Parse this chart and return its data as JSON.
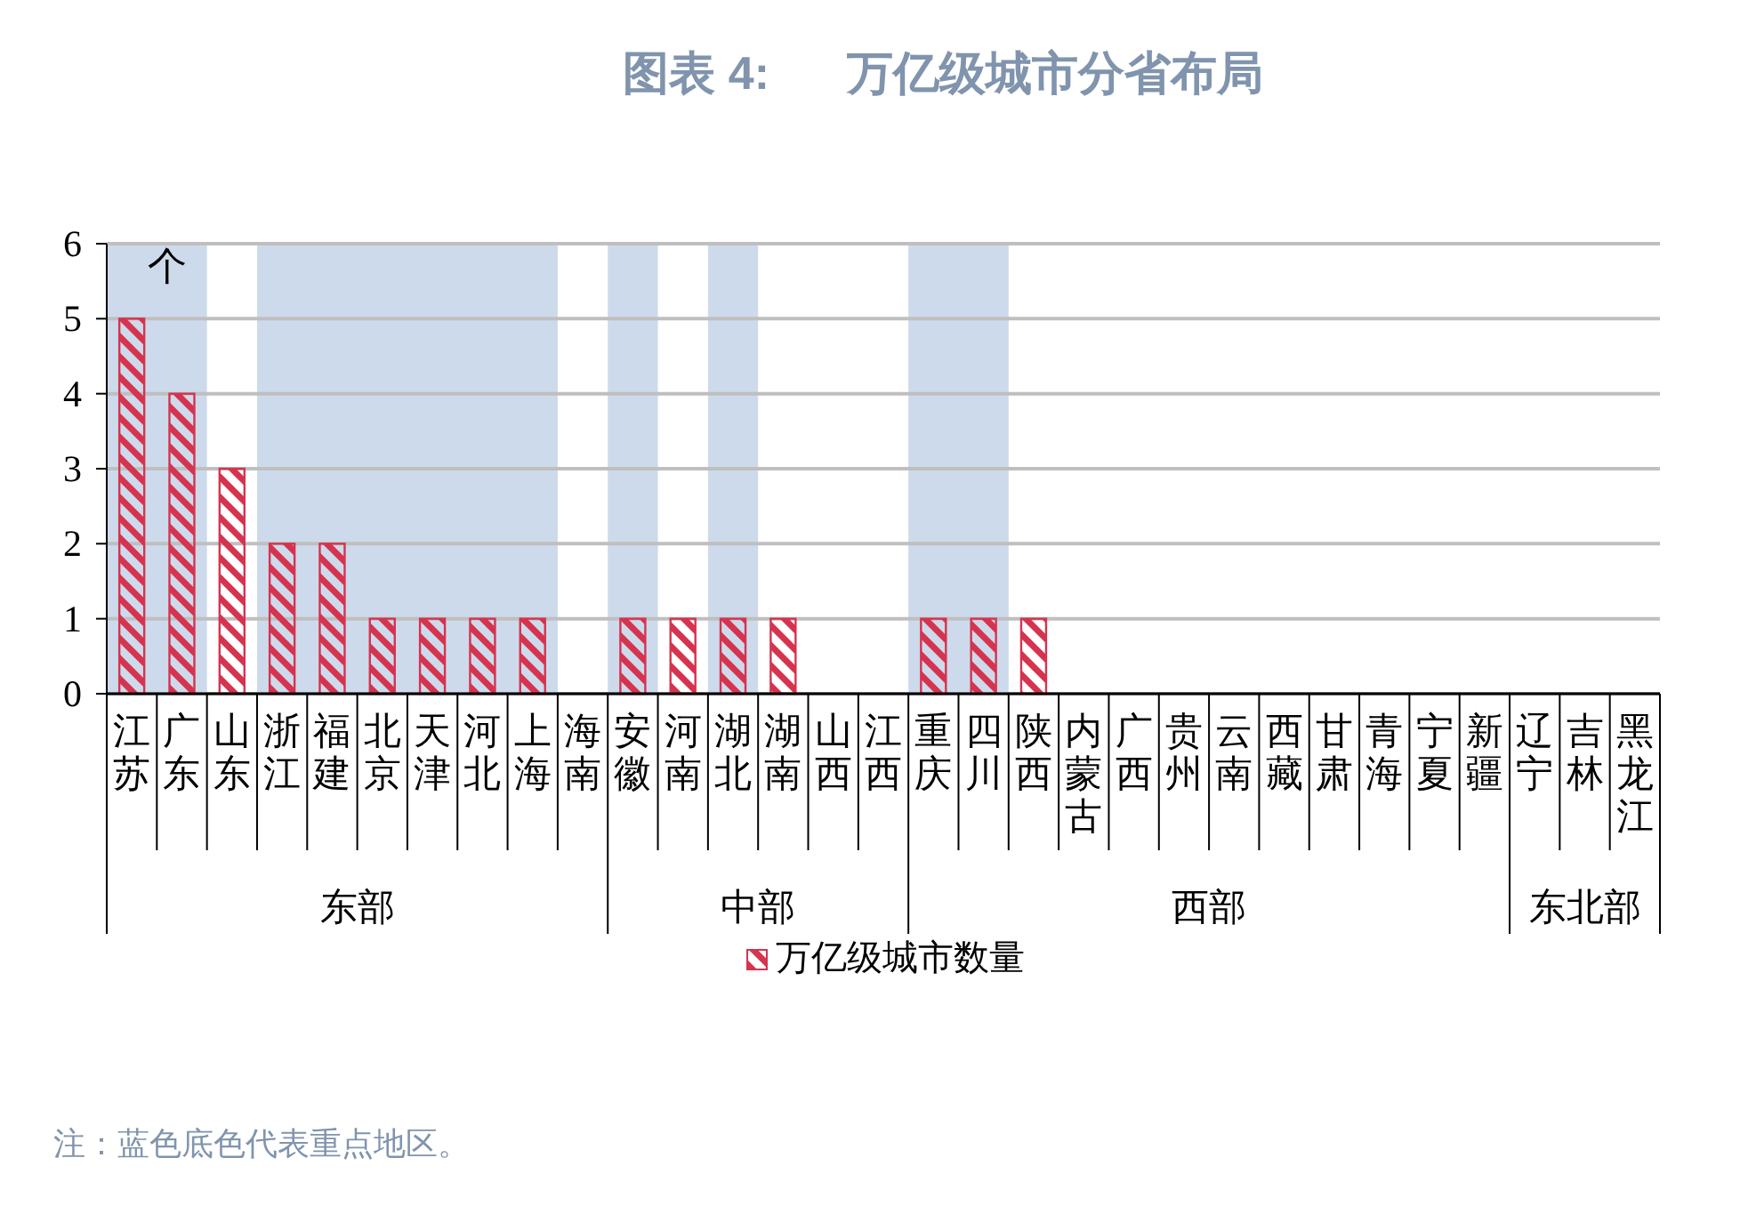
{
  "chart_data": {
    "type": "bar",
    "title": "图表 4:      万亿级城市分省布局",
    "ylabel": "个",
    "categories": [
      "江苏",
      "广东",
      "山东",
      "浙江",
      "福建",
      "北京",
      "天津",
      "河北",
      "上海",
      "海南",
      "安徽",
      "河南",
      "湖北",
      "湖南",
      "山西",
      "江西",
      "重庆",
      "四川",
      "陕西",
      "内蒙古",
      "广西",
      "贵州",
      "云南",
      "西藏",
      "甘肃",
      "青海",
      "宁夏",
      "新疆",
      "辽宁",
      "吉林",
      "黑龙江"
    ],
    "series": [
      {
        "name": "万亿级城市数量",
        "color": "#d6334f",
        "values": [
          5,
          4,
          3,
          2,
          2,
          1,
          1,
          1,
          1,
          0,
          1,
          1,
          1,
          1,
          0,
          0,
          1,
          1,
          1,
          0,
          0,
          0,
          0,
          0,
          0,
          0,
          0,
          0,
          0,
          0,
          0
        ]
      }
    ],
    "ylim": [
      0,
      6
    ],
    "yticks": [
      0,
      1,
      2,
      3,
      4,
      5,
      6
    ],
    "grid": "y",
    "legend": "bottom",
    "bands": [
      {
        "axis": "x",
        "from": "江苏",
        "to": "广东",
        "color": "#cddaeb"
      },
      {
        "axis": "x",
        "from": "浙江",
        "to": "上海",
        "color": "#cddaeb"
      },
      {
        "axis": "x",
        "from": "安徽",
        "to": "安徽",
        "color": "#cddaeb"
      },
      {
        "axis": "x",
        "from": "湖北",
        "to": "湖北",
        "color": "#cddaeb"
      },
      {
        "axis": "x",
        "from": "重庆",
        "to": "四川",
        "color": "#cddaeb"
      }
    ],
    "annotations": [
      "东部",
      "中部",
      "西部",
      "东北部",
      "注：蓝色底色代表重点地区。"
    ]
  }
}
